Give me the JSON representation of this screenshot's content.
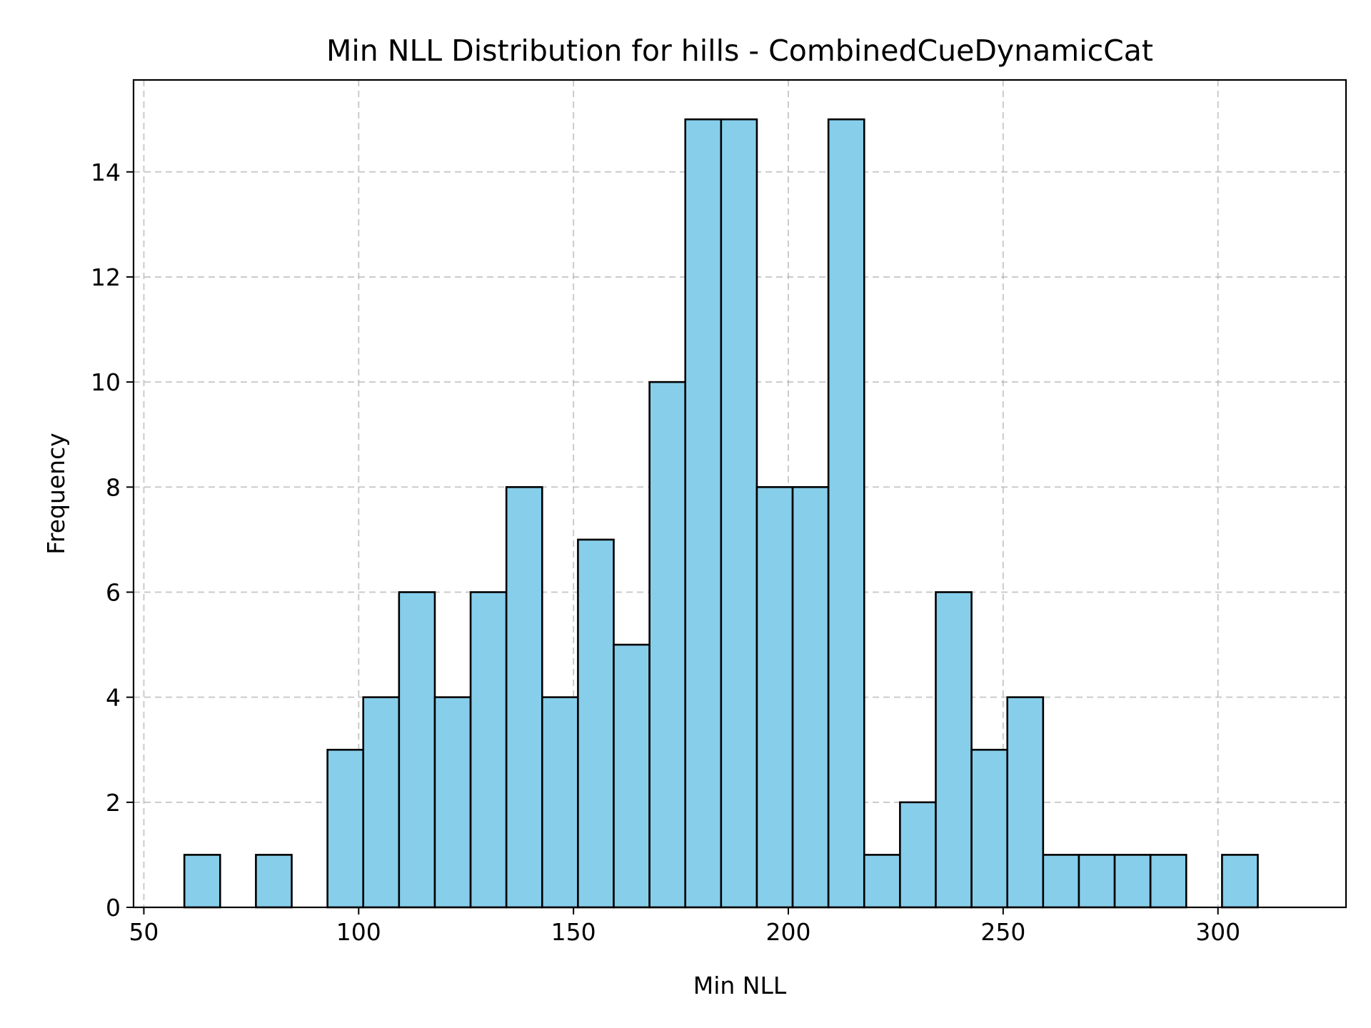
{
  "chart_data": {
    "type": "bar",
    "subtype": "histogram",
    "title": "Min NLL Distribution for hills - CombinedCueDynamicCat",
    "xlabel": "Min NLL",
    "ylabel": "Frequency",
    "xlim": [
      47.6,
      329.8
    ],
    "ylim": [
      0,
      15.75
    ],
    "x_ticks": [
      50,
      100,
      150,
      200,
      250,
      300
    ],
    "y_ticks": [
      0,
      2,
      4,
      6,
      8,
      10,
      12,
      14
    ],
    "grid": true,
    "bar_color": "#87CEEB",
    "edge_color": "#000000",
    "bin_start": 51.1,
    "bin_end": 317.6,
    "bin_count": 32,
    "values": [
      0,
      1,
      0,
      1,
      0,
      3,
      4,
      6,
      4,
      6,
      8,
      4,
      7,
      5,
      10,
      15,
      15,
      8,
      8,
      15,
      1,
      2,
      6,
      3,
      4,
      1,
      1,
      1,
      1,
      0,
      1,
      0
    ]
  }
}
